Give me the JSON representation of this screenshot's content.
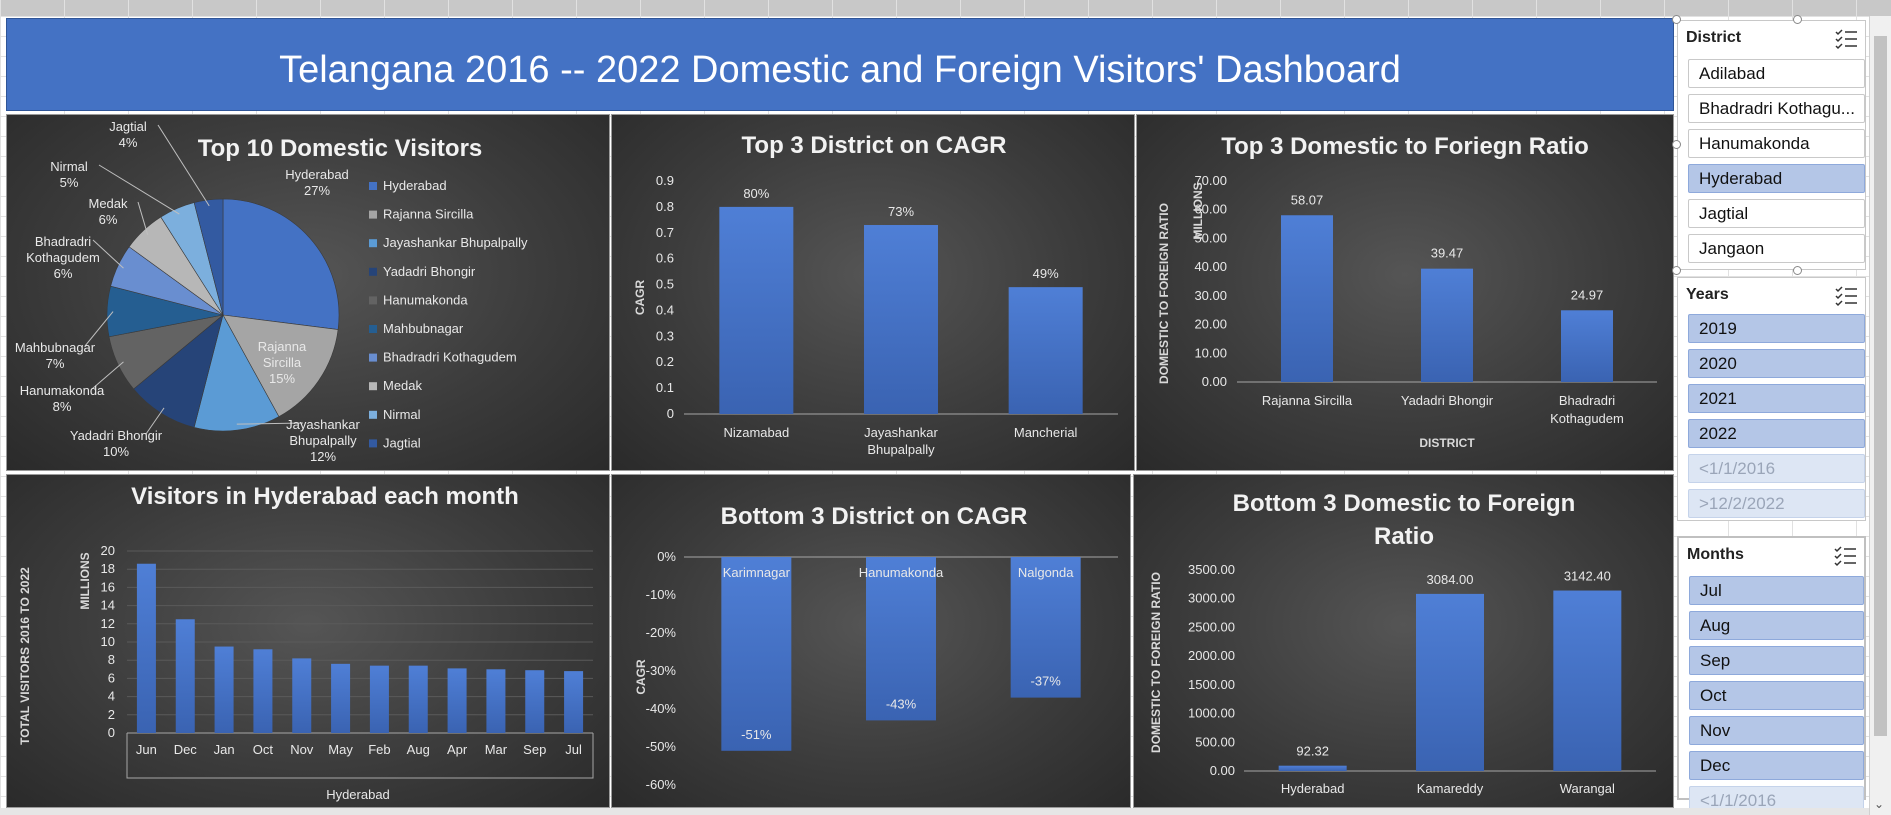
{
  "dashboard": {
    "title": "Telangana 2016 -- 2022  Domestic and Foreign Visitors' Dashboard"
  },
  "charts": {
    "pie": {
      "title": "Top 10 Domestic Visitors",
      "slices": [
        {
          "name": "Hyderabad",
          "pct": 27,
          "color": "#4472c4",
          "label": [
            "Hyderabad",
            "27%"
          ]
        },
        {
          "name": "Rajanna Sircilla",
          "pct": 15,
          "color": "#a5a5a5",
          "label": [
            "Rajanna",
            "Sircilla",
            "15%"
          ]
        },
        {
          "name": "Jayashankar Bhupalpally",
          "pct": 12,
          "color": "#5b9bd5",
          "label": [
            "Jayashankar",
            "Bhupalpally",
            "12%"
          ]
        },
        {
          "name": "Yadadri Bhongir",
          "pct": 10,
          "color": "#264478",
          "label": [
            "Yadadri Bhongir",
            "10%"
          ]
        },
        {
          "name": "Hanumakonda",
          "pct": 8,
          "color": "#636363",
          "label": [
            "Hanumakonda",
            "8%"
          ]
        },
        {
          "name": "Mahbubnagar",
          "pct": 7,
          "color": "#255e91",
          "label": [
            "Mahbubnagar",
            "7%"
          ]
        },
        {
          "name": "Bhadradri Kothagudem",
          "pct": 6,
          "color": "#698ed0",
          "label": [
            "Bhadradri",
            "Kothagudem",
            "6%"
          ]
        },
        {
          "name": "Medak",
          "pct": 6,
          "color": "#b7b7b7",
          "label": [
            "Medak",
            "6%"
          ]
        },
        {
          "name": "Nirmal",
          "pct": 5,
          "color": "#7cafdd",
          "label": [
            "Nirmal",
            "5%"
          ]
        },
        {
          "name": "Jagtial",
          "pct": 4,
          "color": "#335aa1",
          "label": [
            "Jagtial",
            "4%"
          ]
        }
      ]
    },
    "cagr_top": {
      "title": "Top 3 District on CAGR",
      "ylabel": "CAGR",
      "ylim": [
        0,
        0.9
      ],
      "ticks": [
        "0",
        "0.1",
        "0.2",
        "0.3",
        "0.4",
        "0.5",
        "0.6",
        "0.7",
        "0.8",
        "0.9"
      ],
      "categories": [
        [
          "Nizamabad"
        ],
        [
          "Jayashankar",
          "Bhupalpally"
        ],
        [
          "Mancherial"
        ]
      ],
      "values": [
        0.8,
        0.73,
        0.49
      ],
      "data_labels": [
        "80%",
        "73%",
        "49%"
      ]
    },
    "ratio_top": {
      "title": "Top 3 Domestic to Foriegn Ratio",
      "ylabel": "DOMESTIC TO FOREIGN RATIO",
      "unit": "MILLIONS",
      "xlabel": "DISTRICT",
      "ylim": [
        0,
        70
      ],
      "ticks": [
        "0.00",
        "10.00",
        "20.00",
        "30.00",
        "40.00",
        "50.00",
        "60.00",
        "70.00"
      ],
      "categories": [
        [
          "Rajanna Sircilla"
        ],
        [
          "Yadadri Bhongir"
        ],
        [
          "Bhadradri",
          "Kothagudem"
        ]
      ],
      "values": [
        58.07,
        39.47,
        24.97
      ],
      "data_labels": [
        "58.07",
        "39.47",
        "24.97"
      ]
    },
    "monthly": {
      "title": "Visitors in Hyderabad each month",
      "ylabel": "TOTAL VISITORS 2016 TO 2022",
      "unit": "MILLIONS",
      "xlabel": "Hyderabad",
      "ylim": [
        0,
        20
      ],
      "ticks": [
        "0",
        "2",
        "4",
        "6",
        "8",
        "10",
        "12",
        "14",
        "16",
        "18",
        "20"
      ],
      "categories": [
        "Jun",
        "Dec",
        "Jan",
        "Oct",
        "Nov",
        "May",
        "Feb",
        "Aug",
        "Apr",
        "Mar",
        "Sep",
        "Jul"
      ],
      "values": [
        18.6,
        12.5,
        9.5,
        9.2,
        8.2,
        7.6,
        7.4,
        7.4,
        7.1,
        7.0,
        6.9,
        6.8
      ]
    },
    "cagr_bottom": {
      "title": "Bottom 3 District on CAGR",
      "ylabel": "CAGR",
      "ylim": [
        -0.6,
        0
      ],
      "ticks": [
        "0%",
        "-10%",
        "-20%",
        "-30%",
        "-40%",
        "-50%",
        "-60%"
      ],
      "categories": [
        "Karimnagar",
        "Hanumakonda",
        "Nalgonda"
      ],
      "values": [
        -0.51,
        -0.43,
        -0.37
      ],
      "data_labels": [
        "-51%",
        "-43%",
        "-37%"
      ]
    },
    "ratio_bottom": {
      "title_lines": [
        "Bottom 3 Domestic to Foreign",
        "Ratio"
      ],
      "ylabel": "DOMESTIC TO FOREIGN RATIO",
      "ylim": [
        0,
        3500
      ],
      "ticks": [
        "0.00",
        "500.00",
        "1000.00",
        "1500.00",
        "2000.00",
        "2500.00",
        "3000.00",
        "3500.00"
      ],
      "categories": [
        "Hyderabad",
        "Kamareddy",
        "Warangal"
      ],
      "values": [
        92.32,
        3084.0,
        3142.4
      ],
      "data_labels": [
        "92.32",
        "3084.00",
        "3142.40"
      ]
    }
  },
  "slicers": {
    "district": {
      "title": "District",
      "items": [
        {
          "label": "Adilabad",
          "state": "unsel"
        },
        {
          "label": "Bhadradri Kothagu...",
          "state": "unsel"
        },
        {
          "label": "Hanumakonda",
          "state": "unsel"
        },
        {
          "label": "Hyderabad",
          "state": "sel"
        },
        {
          "label": "Jagtial",
          "state": "unsel"
        },
        {
          "label": "Jangaon",
          "state": "unsel"
        }
      ]
    },
    "years": {
      "title": "Years",
      "items": [
        {
          "label": "2019",
          "state": "sel"
        },
        {
          "label": "2020",
          "state": "sel"
        },
        {
          "label": "2021",
          "state": "sel"
        },
        {
          "label": "2022",
          "state": "sel"
        },
        {
          "label": "<1/1/2016",
          "state": "nodata"
        },
        {
          "label": ">12/2/2022",
          "state": "nodata"
        }
      ]
    },
    "months": {
      "title": "Months",
      "items": [
        {
          "label": "Jul",
          "state": "sel"
        },
        {
          "label": "Aug",
          "state": "sel"
        },
        {
          "label": "Sep",
          "state": "sel"
        },
        {
          "label": "Oct",
          "state": "sel"
        },
        {
          "label": "Nov",
          "state": "sel"
        },
        {
          "label": "Dec",
          "state": "sel"
        },
        {
          "label": "<1/1/2016",
          "state": "nodata"
        }
      ]
    }
  },
  "colors": {
    "bar": "#4472c4",
    "banner": "#4472c4",
    "selected": "#b4c6e7"
  }
}
